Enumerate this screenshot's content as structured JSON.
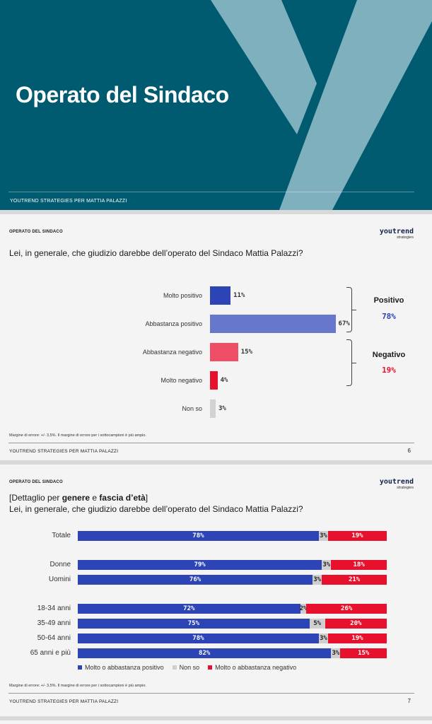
{
  "cover": {
    "title": "Operato del Sindaco",
    "footer": "YOUTREND STRATEGIES PER MATTIA PALAZZI",
    "colors": {
      "background": "#005a70",
      "logo_y": "#7fb0bd"
    }
  },
  "brand": {
    "name": "youtrend",
    "sub": "strategies"
  },
  "slide6": {
    "kicker": "OPERATO DEL SINDACO",
    "question": "Lei, in generale, che giudizio darebbe dell’operato del Sindaco Mattia Palazzi?",
    "note": "Margine di errore: +/- 3,5%. Il margine di errore per i sottocampioni è più ampio.",
    "footer": "YOUTREND STRATEGIES PER MATTIA PALAZZI",
    "page": "6",
    "groups": [
      {
        "title": "Positivo",
        "value": "78%",
        "color": "#2c44b6"
      },
      {
        "title": "Negativo",
        "value": "19%",
        "color": "#e8112d"
      }
    ]
  },
  "slide7": {
    "kicker": "OPERATO DEL SINDACO",
    "subtitle_prefix": "[Dettaglio per ",
    "subtitle_b1": "genere",
    "subtitle_mid": " e ",
    "subtitle_b2": "fascia d’età",
    "subtitle_suffix": "]",
    "question": "Lei, in generale, che giudizio darebbe dell’operato del Sindaco Mattia Palazzi?",
    "note": "Margine di errore: +/- 3,5%. Il margine di errore per i sottocampioni è più ampio.",
    "footer": "YOUTREND STRATEGIES PER MATTIA PALAZZI",
    "page": "7",
    "legend": [
      {
        "label": "Molto o abbastanza positivo",
        "color": "#2c44b6"
      },
      {
        "label": "Non so",
        "color": "#cfcfcf"
      },
      {
        "label": "Molto o abbastanza negativo",
        "color": "#e8112d"
      }
    ]
  },
  "chart_data": [
    {
      "type": "bar",
      "orientation": "horizontal",
      "categories": [
        "Molto positivo",
        "Abbastanza positivo",
        "Abbastanza negativo",
        "Molto negativo",
        "Non so"
      ],
      "values": [
        11,
        67,
        15,
        4,
        3
      ],
      "value_labels": [
        "11%",
        "67%",
        "15%",
        "4%",
        "3%"
      ],
      "colors": [
        "#2c44b6",
        "#6677cc",
        "#f04d66",
        "#e8112d",
        "#d2d2d2"
      ],
      "title": "Lei, in generale, che giudizio darebbe dell’operato del Sindaco Mattia Palazzi?",
      "xlim": [
        0,
        100
      ],
      "grid": false
    },
    {
      "type": "bar",
      "orientation": "horizontal",
      "stacked": true,
      "categories": [
        "Totale",
        "Donne",
        "Uomini",
        "18-34 anni",
        "35-49 anni",
        "50-64 anni",
        "65 anni e più"
      ],
      "series": [
        {
          "name": "Molto o abbastanza positivo",
          "values": [
            78,
            79,
            76,
            72,
            75,
            78,
            82
          ],
          "color": "#2c44b6"
        },
        {
          "name": "Non so",
          "values": [
            3,
            3,
            3,
            2,
            5,
            3,
            3
          ],
          "color": "#cfcfcf"
        },
        {
          "name": "Molto o abbastanza negativo",
          "values": [
            19,
            18,
            21,
            26,
            20,
            19,
            15
          ],
          "color": "#e8112d"
        }
      ],
      "title": "Lei, in generale, che giudizio darebbe dell’operato del Sindaco Mattia Palazzi?",
      "xlim": [
        0,
        100
      ],
      "legend": "bottom",
      "grid": false
    }
  ]
}
